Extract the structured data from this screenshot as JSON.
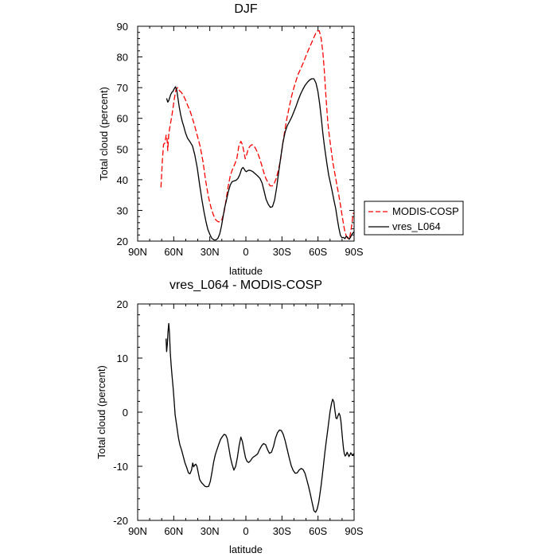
{
  "chart_data": [
    {
      "type": "line",
      "title": "DJF",
      "xlabel": "latitude",
      "ylabel": "Total cloud (percent)",
      "xlim": [
        90,
        -90
      ],
      "ylim": [
        20,
        90
      ],
      "x_tick_values": [
        90,
        60,
        30,
        0,
        -30,
        -60,
        -90
      ],
      "x_tick_labels": [
        "90N",
        "60N",
        "30N",
        "0",
        "30S",
        "60S",
        "90S"
      ],
      "y_tick_values": [
        20,
        30,
        40,
        50,
        60,
        70,
        80,
        90
      ],
      "y_tick_labels": [
        "20",
        "30",
        "40",
        "50",
        "60",
        "70",
        "80",
        "90"
      ],
      "legend_position": "outside-right",
      "series": [
        {
          "name": "MODIS-COSP",
          "color": "#ff0000",
          "dash": "dashed",
          "x": [
            70.6,
            69.5,
            68.5,
            67.3,
            66.3,
            65.5,
            65.0,
            64.2,
            63.0,
            61.8,
            60.6,
            59.5,
            58.1,
            56.6,
            55.2,
            53.8,
            52.0,
            50.2,
            48.5,
            46.4,
            44.5,
            42.6,
            40.5,
            38.0,
            35.7,
            33.4,
            31.2,
            29.0,
            27.0,
            25.0,
            23.0,
            21.5,
            20.0,
            18.2,
            16.5,
            14.8,
            13.0,
            11.1,
            9.2,
            7.5,
            5.8,
            4.2,
            2.9,
            1.6,
            0.5,
            -0.7,
            -2.0,
            -3.5,
            -5.0,
            -6.5,
            -8.0,
            -9.5,
            -11.3,
            -13.0,
            -14.8,
            -16.6,
            -18.5,
            -20.2,
            -22.0,
            -23.7,
            -25.4,
            -27.2,
            -29.0,
            -30.8,
            -32.6,
            -34.5,
            -36.3,
            -38.2,
            -40.0,
            -41.8,
            -43.6,
            -45.4,
            -47.3,
            -49.0,
            -50.8,
            -52.6,
            -54.5,
            -56.3,
            -58.0,
            -59.6,
            -61.1,
            -62.6,
            -64.0,
            -65.1,
            -66.2,
            -67.2,
            -68.2,
            -69.5,
            -71.0,
            -72.6,
            -74.3,
            -76.0,
            -77.5,
            -79.0,
            -80.5,
            -82.0,
            -83.5,
            -85.0,
            -86.4,
            -87.8,
            -89.3,
            -90.0
          ],
          "y": [
            37.5,
            46.0,
            51.5,
            52.0,
            54.5,
            53.2,
            49.5,
            54.6,
            57.7,
            60.2,
            63.3,
            66.4,
            69.5,
            70.0,
            69.0,
            68.5,
            67.5,
            66.0,
            64.3,
            62.4,
            60.0,
            57.6,
            54.5,
            50.8,
            45.9,
            39.6,
            34.5,
            30.9,
            28.5,
            26.9,
            26.3,
            26.3,
            27.0,
            29.2,
            33.4,
            37.6,
            41.3,
            43.4,
            45.1,
            47.0,
            51.0,
            52.5,
            51.5,
            49.0,
            46.8,
            48.3,
            50.0,
            51.0,
            51.4,
            51.2,
            50.2,
            49.0,
            47.1,
            45.0,
            42.5,
            40.4,
            39.0,
            38.0,
            38.0,
            38.9,
            40.6,
            43.4,
            46.9,
            52.0,
            56.6,
            60.7,
            64.2,
            67.5,
            70.0,
            72.4,
            74.5,
            76.0,
            77.7,
            79.3,
            81.2,
            82.8,
            84.5,
            86.1,
            87.6,
            88.5,
            88.5,
            86.0,
            81.6,
            76.2,
            69.5,
            63.9,
            58.3,
            54.0,
            49.5,
            45.0,
            41.3,
            37.7,
            34.5,
            30.9,
            27.2,
            23.7,
            21.6,
            20.7,
            21.3,
            24.6,
            29.0,
            29.2
          ]
        },
        {
          "name": "vres_L064",
          "color": "#000000",
          "dash": "solid",
          "x": [
            65.9,
            65.0,
            64.2,
            63.5,
            62.5,
            61.5,
            60.6,
            59.8,
            58.5,
            57.5,
            56.6,
            55.4,
            54.2,
            53.0,
            51.7,
            50.3,
            48.5,
            46.4,
            44.4,
            42.5,
            40.5,
            38.3,
            36.5,
            34.8,
            33.2,
            31.6,
            30.0,
            28.3,
            26.6,
            24.9,
            23.3,
            21.8,
            20.4,
            19.2,
            17.8,
            16.2,
            14.7,
            13.0,
            11.4,
            9.8,
            8.2,
            6.6,
            5.1,
            3.6,
            2.4,
            1.4,
            0.5,
            -0.4,
            -1.3,
            -2.5,
            -4.0,
            -5.5,
            -7.0,
            -8.5,
            -10.1,
            -11.8,
            -13.5,
            -15.1,
            -16.8,
            -18.6,
            -20.4,
            -22.1,
            -23.9,
            -25.6,
            -27.3,
            -29.1,
            -30.8,
            -32.6,
            -34.4,
            -36.2,
            -38.0,
            -39.8,
            -41.7,
            -43.5,
            -45.4,
            -47.3,
            -49.2,
            -51.1,
            -53.0,
            -54.8,
            -56.6,
            -58.3,
            -59.9,
            -61.4,
            -62.8,
            -64.0,
            -65.2,
            -66.4,
            -67.6,
            -68.9,
            -70.3,
            -71.8,
            -73.2,
            -74.7,
            -76.0,
            -77.3,
            -78.6,
            -79.9,
            -81.2,
            -82.4,
            -83.6,
            -84.8,
            -85.9,
            -87.1,
            -88.3,
            -89.4,
            -90.0
          ],
          "y": [
            66.5,
            65.3,
            65.7,
            66.5,
            67.8,
            68.5,
            68.8,
            69.5,
            70.3,
            69.2,
            66.8,
            63.6,
            61.1,
            59.1,
            57.4,
            55.4,
            53.5,
            52.3,
            51.0,
            48.1,
            44.0,
            38.0,
            33.4,
            29.5,
            26.4,
            23.8,
            22.2,
            20.9,
            20.4,
            20.4,
            20.9,
            22.3,
            24.7,
            27.4,
            30.6,
            33.2,
            36.0,
            38.3,
            39.4,
            39.6,
            39.8,
            40.4,
            41.6,
            43.5,
            44.0,
            43.5,
            42.9,
            42.6,
            42.9,
            43.1,
            43.0,
            42.7,
            42.2,
            41.7,
            41.1,
            40.4,
            38.9,
            36.4,
            33.6,
            32.0,
            31.0,
            31.2,
            33.4,
            37.5,
            42.6,
            47.6,
            52.0,
            55.5,
            57.6,
            58.9,
            60.3,
            62.0,
            63.9,
            65.9,
            67.8,
            69.4,
            70.7,
            71.7,
            72.5,
            72.9,
            72.9,
            71.5,
            68.8,
            64.6,
            59.8,
            55.2,
            51.4,
            48.0,
            44.6,
            41.5,
            39.0,
            36.2,
            33.4,
            30.6,
            27.4,
            24.3,
            21.9,
            21.1,
            21.2,
            20.8,
            21.6,
            21.2,
            20.6,
            21.3,
            22.3,
            22.8,
            23.1
          ]
        }
      ]
    },
    {
      "type": "line",
      "title": "vres_L064 - MODIS-COSP",
      "xlabel": "latitude",
      "ylabel": "Total cloud (percent)",
      "xlim": [
        90,
        -90
      ],
      "ylim": [
        -20,
        20
      ],
      "x_tick_values": [
        90,
        60,
        30,
        0,
        -30,
        -60,
        -90
      ],
      "x_tick_labels": [
        "90N",
        "60N",
        "30N",
        "0",
        "30S",
        "60S",
        "90S"
      ],
      "y_tick_values": [
        -20,
        -10,
        0,
        10,
        20
      ],
      "y_tick_labels": [
        "-20",
        "-10",
        "0",
        "10",
        "20"
      ],
      "series": [
        {
          "color": "#000000",
          "dash": "solid",
          "x": [
            66.4,
            65.9,
            65.3,
            64.7,
            64.1,
            63.5,
            62.9,
            62.1,
            61.3,
            60.4,
            59.6,
            58.8,
            57.5,
            56.2,
            54.9,
            53.5,
            52.0,
            50.6,
            49.1,
            47.8,
            46.5,
            45.2,
            44.2,
            43.4,
            42.6,
            41.7,
            40.7,
            39.6,
            38.5,
            37.5,
            36.5,
            35.3,
            34.0,
            32.5,
            31.0,
            29.6,
            28.2,
            26.9,
            25.5,
            24.0,
            22.5,
            21.0,
            19.5,
            18.1,
            16.8,
            15.5,
            14.2,
            12.9,
            11.5,
            10.0,
            8.5,
            7.1,
            5.7,
            4.2,
            2.9,
            1.6,
            0.3,
            -1.0,
            -2.4,
            -3.8,
            -5.2,
            -6.7,
            -8.2,
            -9.8,
            -11.4,
            -13.1,
            -14.7,
            -16.4,
            -18.0,
            -19.6,
            -21.3,
            -23.0,
            -24.6,
            -26.3,
            -27.9,
            -29.5,
            -31.1,
            -32.7,
            -34.3,
            -36.0,
            -37.7,
            -39.4,
            -41.1,
            -42.7,
            -44.3,
            -46.0,
            -47.6,
            -49.2,
            -50.7,
            -52.2,
            -53.7,
            -55.2,
            -56.6,
            -58.0,
            -59.3,
            -60.6,
            -61.7,
            -62.6,
            -63.4,
            -64.1,
            -64.9,
            -65.8,
            -66.8,
            -67.9,
            -69.0,
            -70.1,
            -71.2,
            -72.2,
            -73.2,
            -74.1,
            -75.0,
            -75.8,
            -76.7,
            -77.5,
            -78.3,
            -79.0,
            -79.7,
            -80.4,
            -81.1,
            -81.8,
            -82.6,
            -83.4,
            -84.2,
            -85.0,
            -85.7,
            -86.5,
            -87.2,
            -88.0,
            -88.8,
            -89.5,
            -90.0
          ],
          "y": [
            13.6,
            11.2,
            12.6,
            15.0,
            16.4,
            14.6,
            11.0,
            8.5,
            6.4,
            4.3,
            2.0,
            -0.5,
            -2.5,
            -4.6,
            -6.0,
            -7.0,
            -8.2,
            -9.4,
            -10.3,
            -11.2,
            -11.4,
            -10.7,
            -9.4,
            -10.1,
            -9.8,
            -9.6,
            -10.0,
            -11.2,
            -12.4,
            -12.8,
            -13.1,
            -13.4,
            -13.7,
            -13.8,
            -13.7,
            -12.8,
            -11.1,
            -9.3,
            -7.9,
            -6.9,
            -5.9,
            -5.0,
            -4.5,
            -4.1,
            -4.2,
            -4.9,
            -6.5,
            -8.3,
            -9.6,
            -10.7,
            -10.0,
            -8.4,
            -6.3,
            -4.6,
            -5.4,
            -7.0,
            -8.4,
            -9.1,
            -9.3,
            -9.0,
            -8.5,
            -8.2,
            -8.0,
            -7.7,
            -6.9,
            -6.2,
            -5.8,
            -6.0,
            -6.9,
            -7.6,
            -7.4,
            -6.3,
            -4.8,
            -3.8,
            -3.3,
            -3.4,
            -4.1,
            -5.3,
            -6.8,
            -8.4,
            -9.9,
            -10.8,
            -11.3,
            -11.2,
            -10.7,
            -10.4,
            -10.6,
            -11.3,
            -12.5,
            -13.8,
            -15.2,
            -16.8,
            -18.2,
            -18.5,
            -17.9,
            -16.6,
            -15.0,
            -13.5,
            -12.0,
            -10.6,
            -9.0,
            -7.3,
            -5.5,
            -3.6,
            -1.6,
            0.2,
            1.6,
            2.4,
            1.9,
            0.2,
            -1.1,
            -1.2,
            -0.6,
            -0.2,
            -0.6,
            -1.6,
            -3.2,
            -5.0,
            -6.6,
            -7.6,
            -8.1,
            -7.9,
            -7.4,
            -7.8,
            -8.2,
            -7.9,
            -7.5,
            -7.8,
            -8.0,
            -7.7,
            -7.8
          ]
        }
      ]
    }
  ]
}
